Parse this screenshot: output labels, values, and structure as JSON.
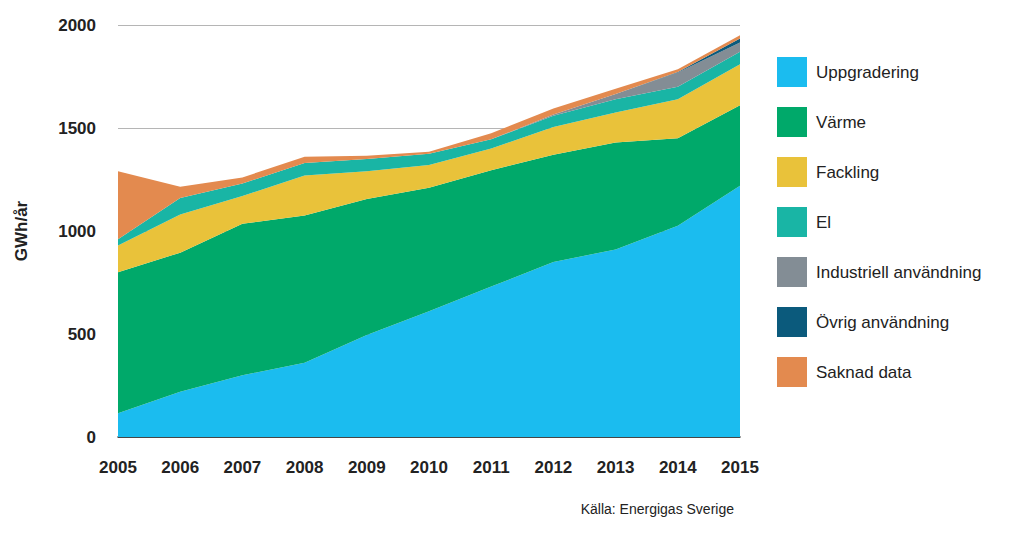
{
  "chart_data": {
    "type": "area",
    "stacked": true,
    "y_label": "GWh/år",
    "source": "Källa: Energigas Sverige",
    "categories": [
      "2005",
      "2006",
      "2007",
      "2008",
      "2009",
      "2010",
      "2011",
      "2012",
      "2013",
      "2014",
      "2015"
    ],
    "series": [
      {
        "name": "Uppgradering",
        "color": "#1bbcef",
        "values": [
          115,
          220,
          300,
          360,
          495,
          610,
          730,
          850,
          910,
          1025,
          1220
        ]
      },
      {
        "name": "Värme",
        "color": "#00a96a",
        "values": [
          685,
          675,
          735,
          715,
          660,
          600,
          565,
          520,
          520,
          425,
          390
        ]
      },
      {
        "name": "Fackling",
        "color": "#e9c23a",
        "values": [
          130,
          185,
          135,
          195,
          135,
          110,
          105,
          135,
          145,
          190,
          200
        ]
      },
      {
        "name": "El",
        "color": "#19b5a5",
        "values": [
          30,
          80,
          60,
          60,
          60,
          55,
          45,
          55,
          65,
          60,
          60
        ]
      },
      {
        "name": "Industriell användning",
        "color": "#838d95",
        "values": [
          0,
          0,
          0,
          0,
          0,
          0,
          0,
          5,
          25,
          70,
          45
        ]
      },
      {
        "name": "Övrig användning",
        "color": "#0b5a7c",
        "values": [
          0,
          0,
          0,
          0,
          0,
          0,
          0,
          0,
          0,
          2,
          20
        ]
      },
      {
        "name": "Saknad data",
        "color": "#e38a4f",
        "values": [
          330,
          55,
          30,
          30,
          15,
          10,
          30,
          30,
          25,
          13,
          15
        ]
      }
    ],
    "ylim": [
      0,
      2000
    ],
    "yticks": [
      0,
      500,
      1000,
      1500,
      2000
    ],
    "grid": true,
    "legend": "right"
  }
}
